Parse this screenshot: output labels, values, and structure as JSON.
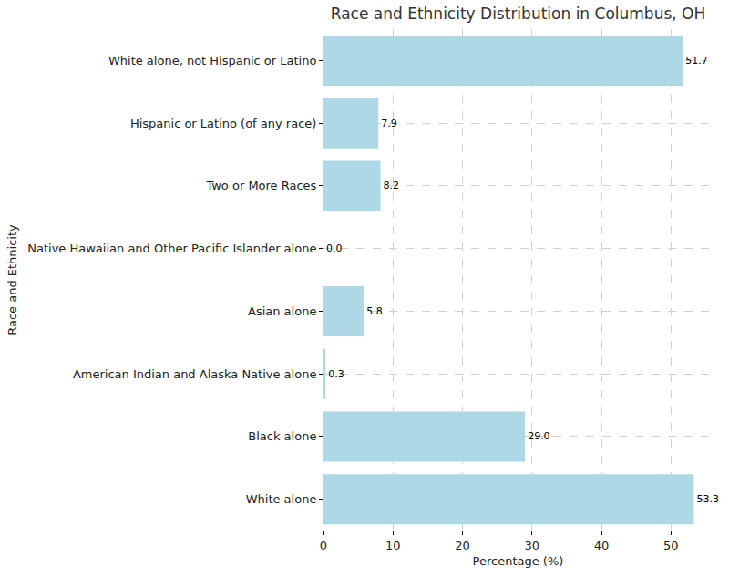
{
  "chart_data": {
    "type": "bar",
    "orientation": "horizontal",
    "title": "Race and Ethnicity Distribution in Columbus, OH",
    "x_label": "Percentage (%)",
    "y_label": "Race and Ethnicity",
    "categories": [
      "White alone",
      "Black alone",
      "American Indian and Alaska Native alone",
      "Asian alone",
      "Native Hawaiian and Other Pacific Islander alone",
      "Two or More Races",
      "Hispanic or Latino (of any race)",
      "White alone, not Hispanic or Latino"
    ],
    "values": [
      53.3,
      29.0,
      0.3,
      5.8,
      0.0,
      8.2,
      7.9,
      51.7
    ],
    "value_labels": [
      "53.3",
      "29.0",
      "0.3",
      "5.8",
      "0.0",
      "8.2",
      "7.9",
      "51.7"
    ],
    "data_labels": true,
    "color": "#add8e6",
    "xlim": [
      0,
      56
    ],
    "xticks": [
      0,
      10,
      20,
      30,
      40,
      50
    ],
    "grid": true
  }
}
